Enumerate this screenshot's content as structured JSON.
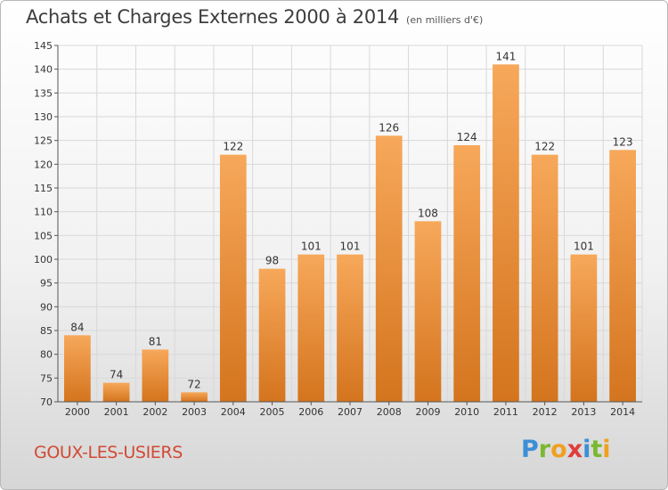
{
  "header": {
    "title": "Achats et Charges Externes 2000 à 2014",
    "subtitle": "(en milliers d'€)"
  },
  "footer": {
    "town": "GOUX-LES-USIERS",
    "logo_letters": [
      {
        "char": "P",
        "color": "#3b8fd6"
      },
      {
        "char": "r",
        "color": "#7ab830"
      },
      {
        "char": "o",
        "color": "#f0a020"
      },
      {
        "char": "x",
        "color": "#e03c3c"
      },
      {
        "char": "i",
        "color": "#3b8fd6"
      },
      {
        "char": "t",
        "color": "#7ab830"
      },
      {
        "char": "i",
        "color": "#f0a020"
      }
    ]
  },
  "colors": {
    "bar_light": "#f7a85a",
    "bar_dark": "#d4741e",
    "grid": "#d8d8d8",
    "axis": "#555555"
  },
  "chart_data": {
    "type": "bar",
    "title": "Achats et Charges Externes 2000 à 2014",
    "subtitle": "(en milliers d'€)",
    "categories": [
      "2000",
      "2001",
      "2002",
      "2003",
      "2004",
      "2005",
      "2006",
      "2007",
      "2008",
      "2009",
      "2010",
      "2011",
      "2012",
      "2013",
      "2014"
    ],
    "values": [
      84,
      74,
      81,
      72,
      122,
      98,
      101,
      101,
      126,
      108,
      124,
      141,
      122,
      101,
      123
    ],
    "ylim": [
      70,
      145
    ],
    "yticks": [
      70,
      75,
      80,
      85,
      90,
      95,
      100,
      105,
      110,
      115,
      120,
      125,
      130,
      135,
      140,
      145
    ],
    "grid": true,
    "data_labels": true
  }
}
